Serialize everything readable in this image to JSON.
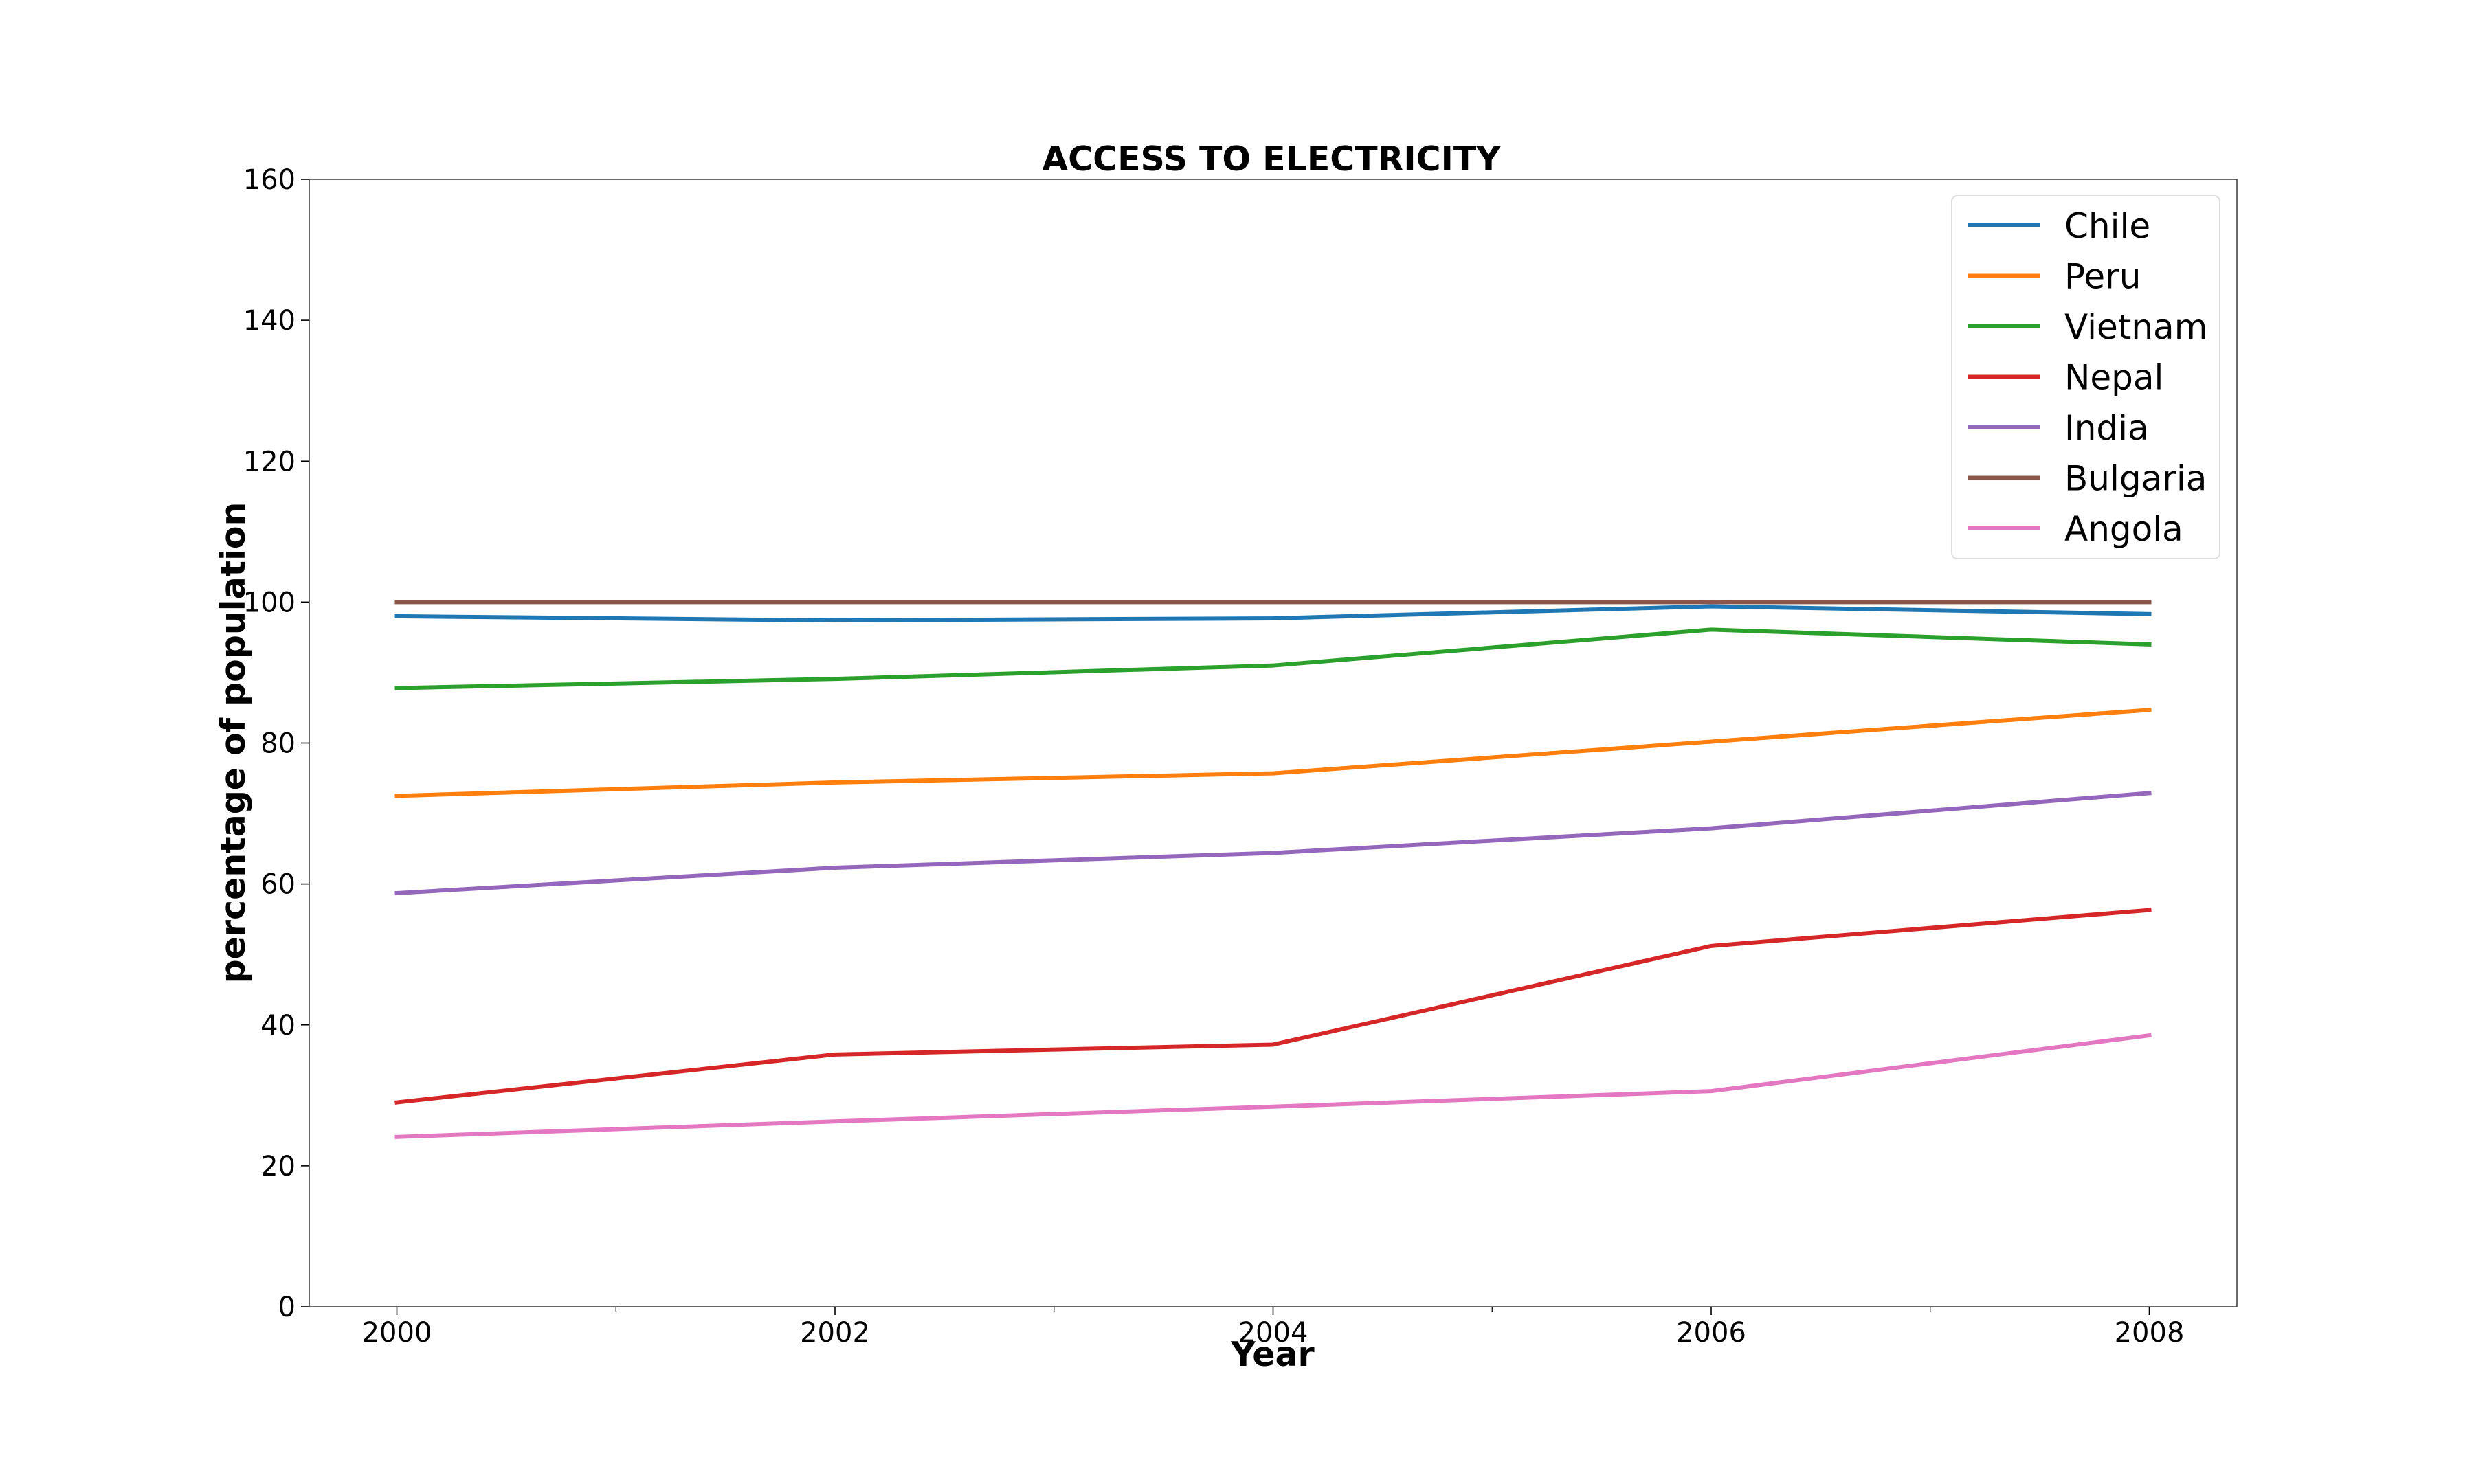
{
  "chart_data": {
    "type": "line",
    "title": "ACCESS TO ELECTRICITY",
    "xlabel": "Year",
    "ylabel": "percentage of population",
    "x": [
      2000,
      2002,
      2004,
      2006,
      2008
    ],
    "xlim": [
      1999.6,
      2008.4
    ],
    "ylim": [
      0,
      160
    ],
    "xticks": [
      "2000",
      "2002",
      "2004",
      "2006",
      "2008"
    ],
    "yticks": [
      "0",
      "20",
      "40",
      "60",
      "80",
      "100",
      "120",
      "140",
      "160"
    ],
    "grid": false,
    "legend_position": "top-right",
    "series": [
      {
        "name": "Chile",
        "color": "#1f77b4",
        "values": [
          98.0,
          97.4,
          97.7,
          99.4,
          98.3
        ]
      },
      {
        "name": "Peru",
        "color": "#ff7f0e",
        "values": [
          72.5,
          74.4,
          75.7,
          80.2,
          84.7
        ]
      },
      {
        "name": "Vietnam",
        "color": "#2ca02c",
        "values": [
          87.8,
          89.1,
          91.0,
          96.1,
          94.0
        ]
      },
      {
        "name": "Nepal",
        "color": "#d62728",
        "values": [
          29.0,
          35.8,
          37.2,
          51.2,
          56.3
        ]
      },
      {
        "name": "India",
        "color": "#9467bd",
        "values": [
          58.7,
          62.3,
          64.4,
          67.9,
          72.9
        ]
      },
      {
        "name": "Bulgaria",
        "color": "#8c564b",
        "values": [
          100.0,
          100.0,
          100.0,
          100.0,
          100.0
        ]
      },
      {
        "name": "Angola",
        "color": "#e377c2",
        "values": [
          24.1,
          26.3,
          28.4,
          30.6,
          38.5
        ]
      }
    ]
  }
}
